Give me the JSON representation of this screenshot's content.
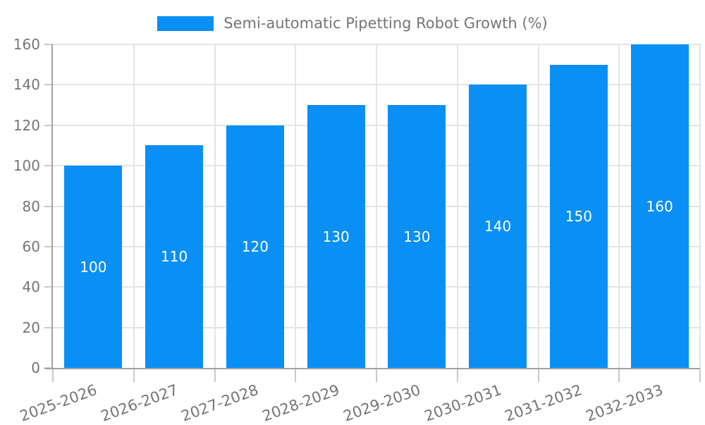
{
  "legend": {
    "label": "Semi-automatic Pipetting Robot Growth (%)"
  },
  "colors": {
    "bar": "#0A8FF5",
    "grid": "#E4E4E4",
    "axis": "#A3A3A3",
    "tick": "#C9C9C9",
    "text": "#757575",
    "value_label": "#FFFFFF",
    "background": "#FFFFFF"
  },
  "chart_data": {
    "type": "bar",
    "title": "Semi-automatic Pipetting Robot Growth (%)",
    "categories": [
      "2025-2026",
      "2026-2027",
      "2027-2028",
      "2028-2029",
      "2029-2030",
      "2030-2031",
      "2031-2032",
      "2032-2033"
    ],
    "values": [
      100,
      110,
      120,
      130,
      130,
      140,
      150,
      160
    ],
    "series": [
      {
        "name": "Semi-automatic Pipetting Robot Growth (%)",
        "values": [
          100,
          110,
          120,
          130,
          130,
          140,
          150,
          160
        ]
      }
    ],
    "yticks": [
      0,
      20,
      40,
      60,
      80,
      100,
      120,
      140,
      160
    ],
    "ylim": [
      0,
      160
    ],
    "xlabel": "",
    "ylabel": "",
    "grid": true,
    "legend_position": "top",
    "bar_value_labels": true,
    "x_label_rotation_deg": -20
  }
}
